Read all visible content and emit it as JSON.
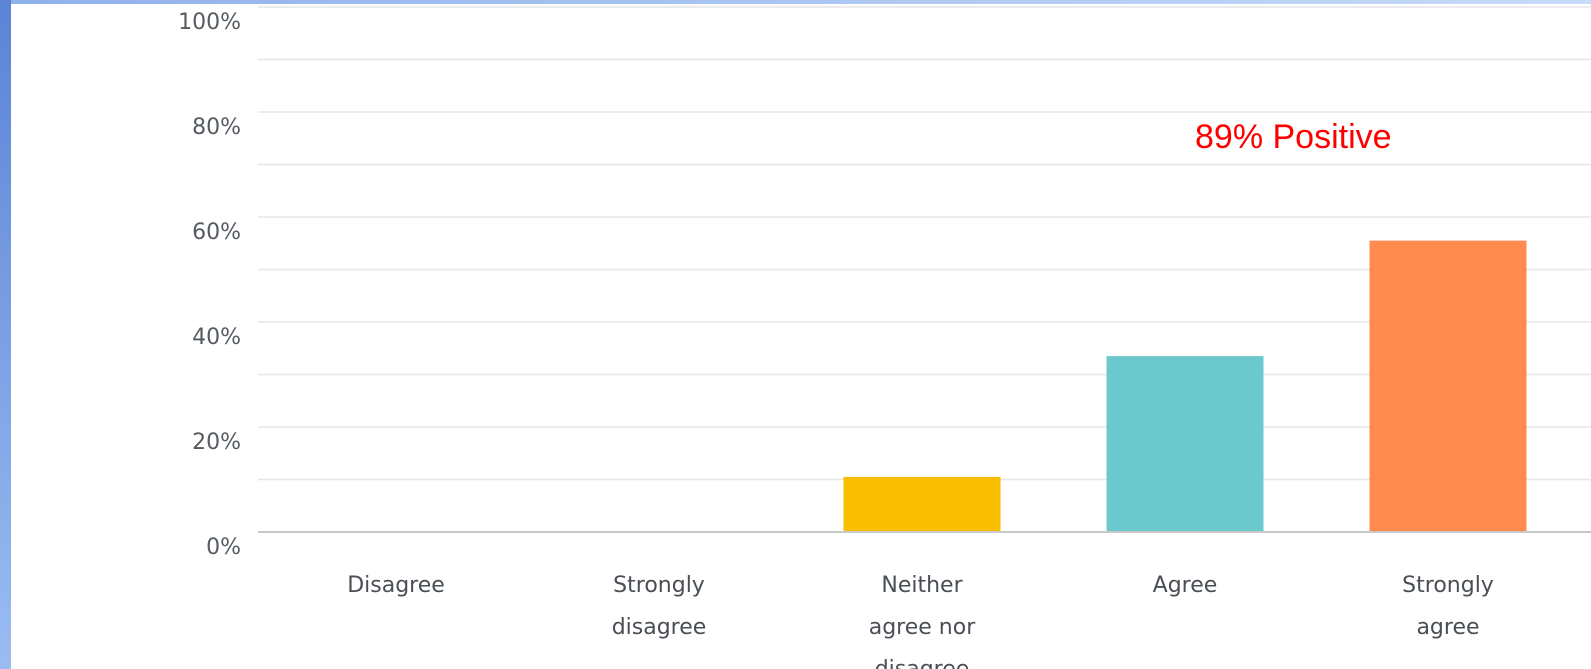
{
  "chart_data": {
    "type": "bar",
    "categories": [
      [
        "Disagree"
      ],
      [
        "Strongly",
        "disagree"
      ],
      [
        "Neither",
        "agree nor",
        "disagree"
      ],
      [
        "Agree"
      ],
      [
        "Strongly",
        "agree"
      ]
    ],
    "values": [
      0,
      0,
      10.5,
      33.5,
      55.5
    ],
    "colors": [
      "#f9be00",
      "#f9be00",
      "#f9be00",
      "#6bc8cd",
      "#ff8b4f"
    ],
    "ylim": [
      0,
      100
    ],
    "yticks": [
      "0%",
      "20%",
      "40%",
      "60%",
      "80%",
      "100%"
    ],
    "grid": true,
    "annotation": "89% Positive"
  }
}
